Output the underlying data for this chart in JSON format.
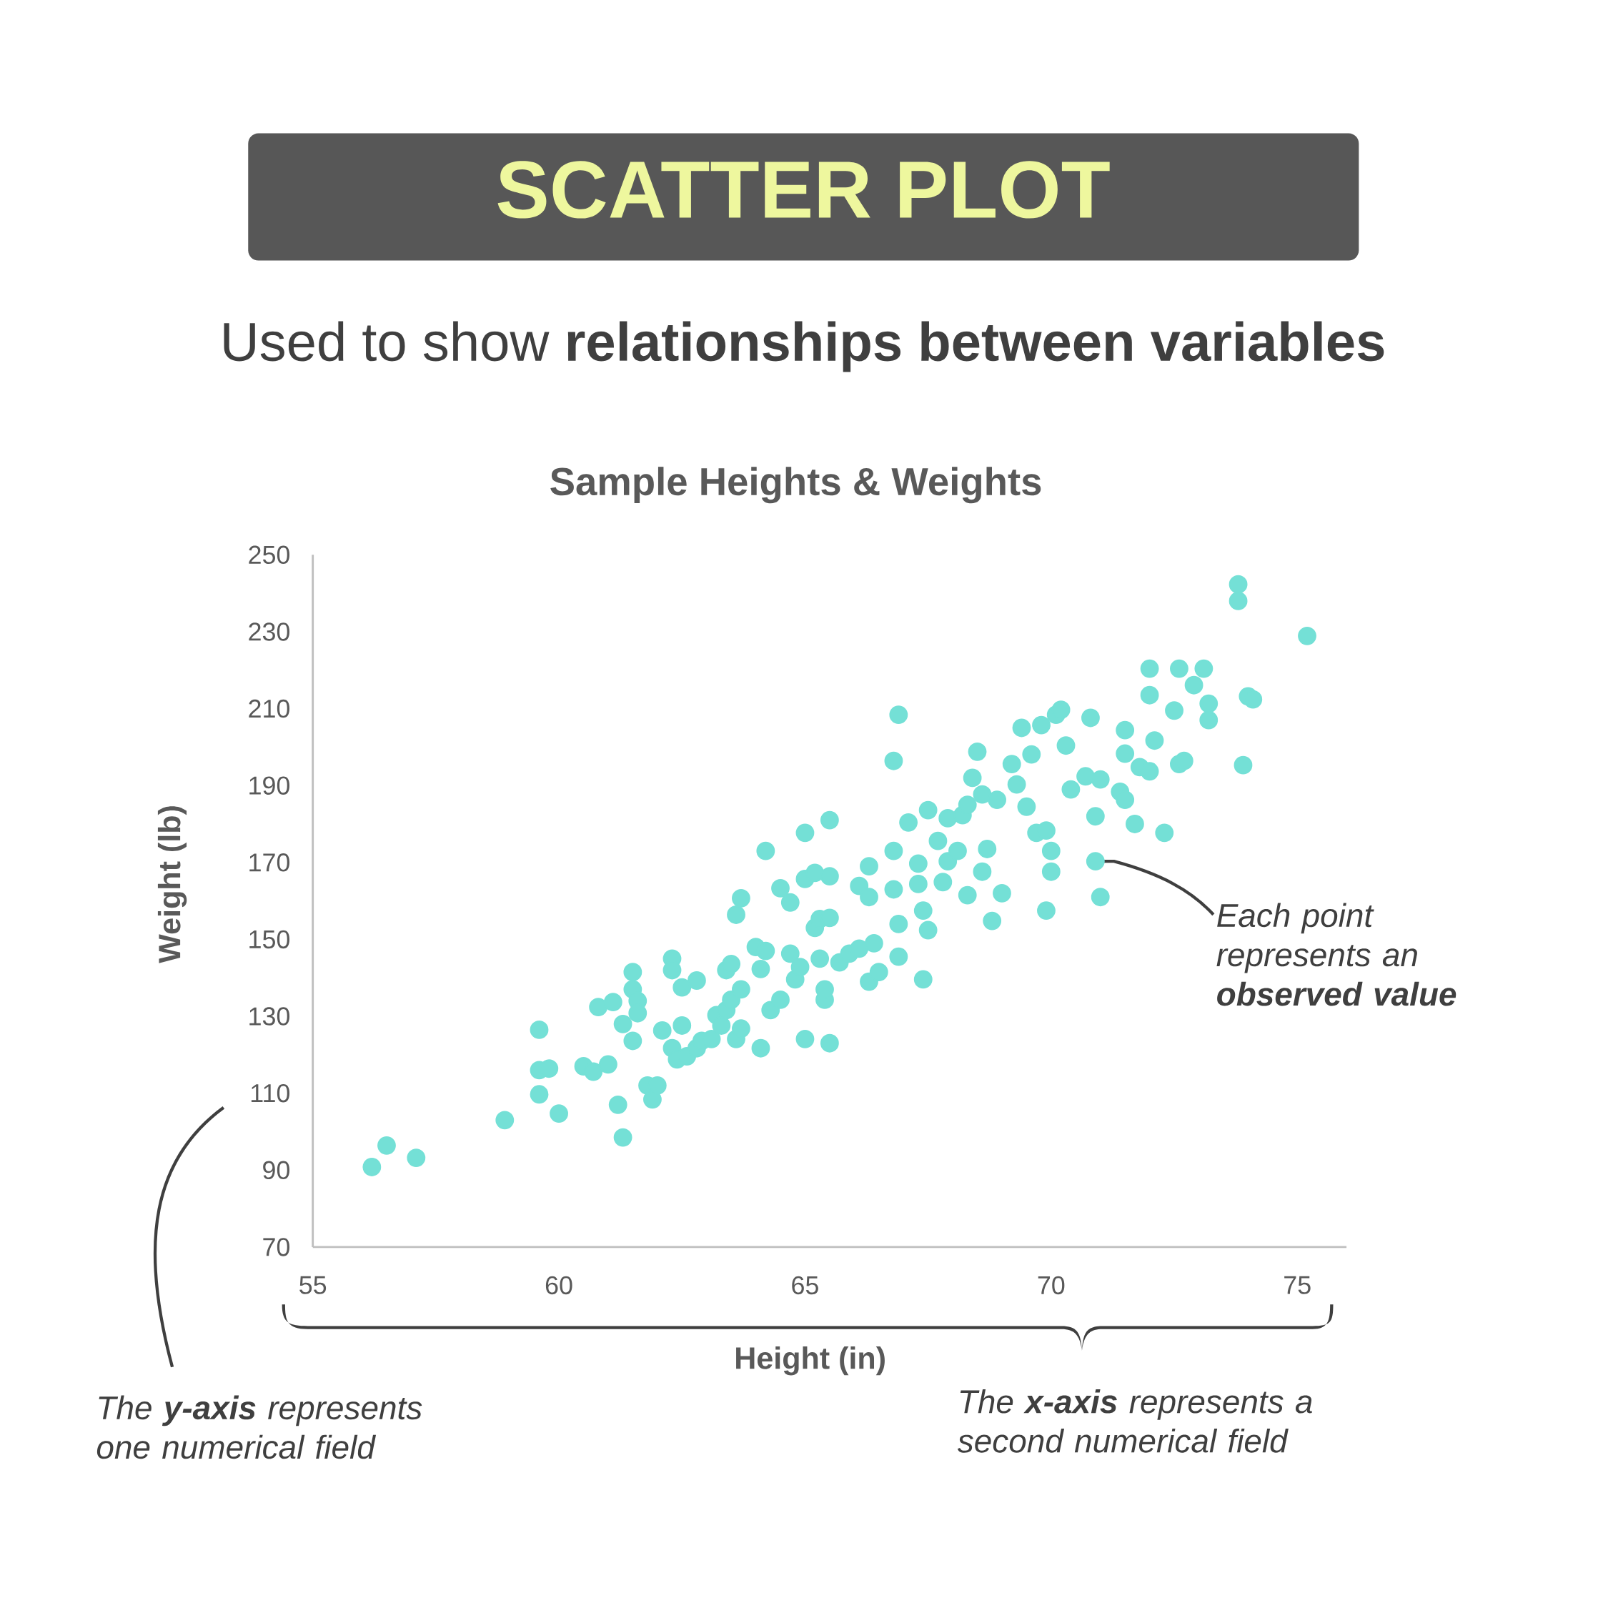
{
  "chart_data": {
    "type": "scatter",
    "title": "Sample Heights & Weights",
    "xlabel": "Height (in)",
    "ylabel": "Weight (lb)",
    "annotations": [
      "SCATTER PLOT",
      "Used to show **relationships between variables**",
      {
        "text": "Each point represents an **observed value**",
        "x": 70.9,
        "y": 170.3
      },
      "The **y-axis** represents one numerical field",
      "The **x-axis** represents a second numerical field"
    ],
    "x": [
      56.2,
      56.5,
      57.1,
      58.9,
      59.6,
      59.6,
      59.6,
      59.8,
      60.0,
      60.5,
      60.7,
      61.0,
      60.8,
      61.1,
      61.2,
      61.3,
      61.3,
      61.5,
      61.5,
      61.6,
      61.6,
      61.5,
      61.8,
      61.9,
      62.0,
      62.1,
      62.3,
      62.3,
      62.3,
      62.4,
      62.5,
      62.5,
      62.8,
      62.6,
      62.8,
      62.9,
      63.1,
      63.2,
      63.3,
      63.4,
      63.5,
      63.4,
      63.5,
      63.6,
      63.7,
      63.7,
      63.7,
      63.6,
      64.0,
      64.1,
      64.2,
      64.2,
      64.1,
      64.3,
      64.5,
      64.5,
      64.7,
      64.7,
      64.8,
      64.9,
      65.0,
      65.0,
      65.0,
      65.2,
      65.2,
      65.3,
      65.3,
      65.4,
      65.4,
      65.5,
      65.5,
      65.5,
      65.5,
      65.7,
      65.9,
      66.1,
      66.3,
      66.1,
      66.3,
      66.3,
      66.4,
      66.5,
      66.8,
      66.8,
      66.9,
      66.8,
      66.9,
      66.9,
      67.1,
      67.3,
      67.3,
      67.4,
      67.4,
      67.5,
      67.5,
      67.7,
      67.8,
      67.9,
      67.9,
      68.1,
      68.2,
      68.3,
      68.3,
      68.4,
      68.5,
      68.6,
      68.6,
      68.7,
      68.8,
      68.9,
      69.0,
      69.2,
      69.3,
      69.4,
      69.5,
      69.6,
      69.7,
      69.9,
      69.8,
      69.9,
      70.0,
      70.0,
      70.1,
      70.2,
      70.3,
      70.4,
      70.7,
      70.8,
      70.9,
      70.9,
      71.0,
      71.0,
      71.4,
      71.5,
      71.5,
      71.5,
      71.7,
      71.8,
      72.0,
      72.0,
      72.1,
      72.0,
      72.3,
      72.5,
      72.6,
      72.6,
      72.7,
      72.9,
      73.1,
      73.2,
      73.2,
      73.8,
      73.8,
      73.9,
      74.0,
      74.1,
      75.2
    ],
    "values": [
      90.8,
      96.4,
      93.2,
      103,
      126.5,
      109.7,
      116,
      116.4,
      104.7,
      117,
      115.6,
      117.5,
      132.4,
      133.7,
      107,
      98.5,
      128,
      141.5,
      137,
      134,
      130.8,
      123.6,
      112,
      108.4,
      112,
      126.3,
      145,
      142,
      121.7,
      118.8,
      127.6,
      137.5,
      139.3,
      119.6,
      121.7,
      123.6,
      124.1,
      130.3,
      127.6,
      142,
      143.6,
      131.6,
      134.3,
      124.1,
      126.8,
      137,
      160.7,
      156.4,
      148,
      142.3,
      173,
      147,
      121.7,
      131.6,
      134.3,
      163.3,
      159.6,
      146.3,
      139.6,
      142.8,
      177.7,
      124.1,
      165.7,
      167.3,
      153,
      155.3,
      145,
      134.3,
      137,
      123,
      181,
      166.4,
      155.6,
      144,
      146.3,
      147.6,
      169,
      163.9,
      161,
      139,
      149,
      141.5,
      173,
      196.4,
      208.4,
      163,
      154,
      145.5,
      180.4,
      169.7,
      164.4,
      157.5,
      139.6,
      152.4,
      183.6,
      175.6,
      164.9,
      181.5,
      170.3,
      173,
      182.3,
      161.5,
      185,
      192,
      198.8,
      187.7,
      167.6,
      173.5,
      154.8,
      186.3,
      162,
      195.6,
      190.3,
      205,
      184.5,
      198.1,
      177.7,
      157.5,
      205.7,
      178.3,
      173,
      167.6,
      208.4,
      209.7,
      200.4,
      189,
      192.4,
      207.6,
      170.3,
      182,
      161,
      191.6,
      188.4,
      186.3,
      204.4,
      198.3,
      180,
      194.8,
      213.5,
      220.4,
      201.7,
      193.7,
      177.7,
      209.5,
      220.4,
      195.6,
      196.4,
      216.1,
      220.4,
      207,
      211.3,
      242.3,
      238,
      195.3,
      213.2,
      212.4,
      228.9
    ],
    "color": "#74e0d6",
    "marker": "circle",
    "xlim": [
      55,
      76
    ],
    "ylim": [
      70,
      250
    ],
    "xticks": [
      55,
      60,
      65,
      70,
      75
    ],
    "yticks": [
      70,
      90,
      110,
      130,
      150,
      170,
      190,
      210,
      230,
      250
    ]
  }
}
